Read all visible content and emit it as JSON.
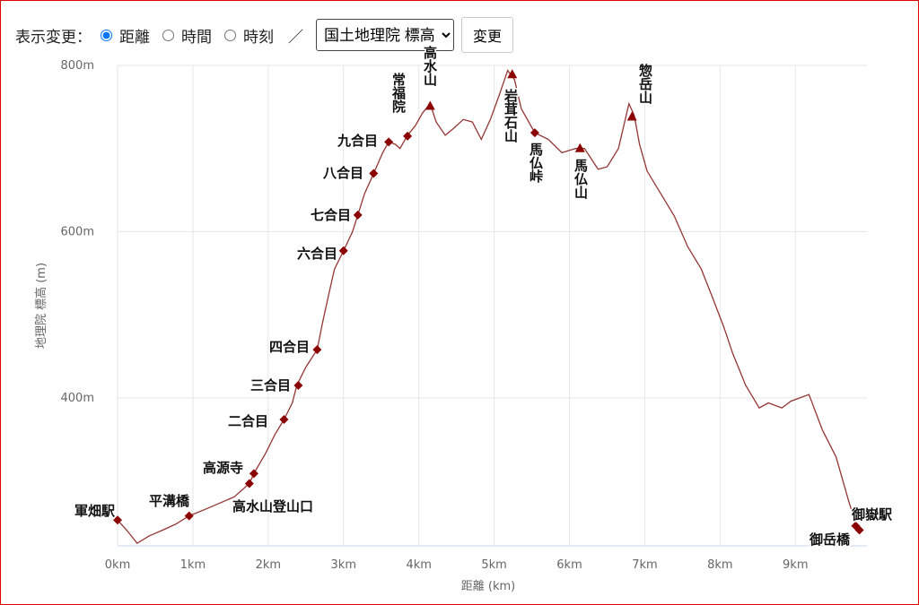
{
  "controls": {
    "label": "表示変更：",
    "options": [
      "距離",
      "時間",
      "時刻"
    ],
    "selected": 0,
    "separator": "／",
    "select": "国土地理院 標高",
    "button": "変更"
  },
  "chart_data": {
    "type": "line",
    "x_label": "距離 (km)",
    "y_label": "地理院 標高 (m)",
    "xlim": [
      0,
      9.95
    ],
    "ylim": [
      222,
      800
    ],
    "xticks": [
      {
        "value": 0,
        "label": "0km"
      },
      {
        "value": 1,
        "label": "1km"
      },
      {
        "value": 2,
        "label": "2km"
      },
      {
        "value": 3,
        "label": "3km"
      },
      {
        "value": 4,
        "label": "4km"
      },
      {
        "value": 5,
        "label": "5km"
      },
      {
        "value": 6,
        "label": "6km"
      },
      {
        "value": 7,
        "label": "7km"
      },
      {
        "value": 8,
        "label": "8km"
      },
      {
        "value": 9,
        "label": "9km"
      }
    ],
    "yticks": [
      {
        "value": 400,
        "label": "400m"
      },
      {
        "value": 600,
        "label": "600m"
      },
      {
        "value": 800,
        "label": "800m"
      }
    ],
    "grid": true,
    "series": [
      {
        "color": "#943634",
        "x": [
          0,
          0.12,
          0.26,
          0.42,
          0.6,
          0.77,
          0.95,
          1.19,
          1.55,
          1.75,
          1.81,
          1.97,
          2.09,
          2.21,
          2.32,
          2.38,
          2.5,
          2.65,
          2.72,
          2.8,
          2.88,
          3.0,
          3.12,
          3.19,
          3.28,
          3.4,
          3.52,
          3.6,
          3.69,
          3.75,
          3.85,
          3.95,
          4.05,
          4.15,
          4.23,
          4.35,
          4.47,
          4.59,
          4.71,
          4.83,
          4.95,
          5.07,
          5.18,
          5.27,
          5.36,
          5.54,
          5.72,
          5.9,
          6.08,
          6.2,
          6.38,
          6.5,
          6.65,
          6.79,
          6.86,
          6.93,
          7.03,
          7.21,
          7.39,
          7.57,
          7.75,
          7.89,
          8.05,
          8.17,
          8.34,
          8.52,
          8.64,
          8.82,
          8.94,
          9.18,
          9.36,
          9.54,
          9.71,
          9.83
        ],
        "values": [
          253,
          241,
          225,
          234,
          241,
          248,
          258,
          267,
          281,
          297,
          309,
          334,
          356,
          374,
          394,
          415,
          437,
          458,
          490,
          523,
          555,
          577,
          600,
          620,
          646,
          670,
          695,
          708,
          705,
          700,
          716,
          727,
          743,
          754,
          732,
          716,
          725,
          735,
          732,
          711,
          735,
          765,
          794,
          783,
          748,
          719,
          711,
          695,
          700,
          700,
          675,
          678,
          700,
          754,
          740,
          705,
          673,
          646,
          619,
          582,
          555,
          523,
          485,
          453,
          415,
          388,
          394,
          388,
          396,
          404,
          361,
          329,
          275,
          241
        ]
      }
    ],
    "marker_color": "#8b0000",
    "markers": [
      {
        "name": "軍畑駅",
        "shape": "diamond",
        "x": 0,
        "y": 253
      },
      {
        "name": "平溝橋",
        "shape": "diamond",
        "x": 0.95,
        "y": 258
      },
      {
        "name": "高水山登山口",
        "shape": "diamond",
        "x": 1.75,
        "y": 297
      },
      {
        "name": "高源寺",
        "shape": "diamond",
        "x": 1.81,
        "y": 309
      },
      {
        "name": "二合目",
        "shape": "diamond",
        "x": 2.21,
        "y": 374
      },
      {
        "name": "三合目",
        "shape": "diamond",
        "x": 2.4,
        "y": 415
      },
      {
        "name": "四合目",
        "shape": "diamond",
        "x": 2.65,
        "y": 458
      },
      {
        "name": "六合目",
        "shape": "diamond",
        "x": 3.0,
        "y": 577
      },
      {
        "name": "七合目",
        "shape": "diamond",
        "x": 3.19,
        "y": 620
      },
      {
        "name": "八合目",
        "shape": "diamond",
        "x": 3.4,
        "y": 670
      },
      {
        "name": "九合目",
        "shape": "diamond",
        "x": 3.6,
        "y": 708
      },
      {
        "name": "常福院",
        "shape": "diamond",
        "x": 3.85,
        "y": 715
      },
      {
        "name": "高水山",
        "shape": "triangle",
        "x": 4.15,
        "y": 751
      },
      {
        "name": "岩茸石山",
        "shape": "triangle",
        "x": 5.24,
        "y": 789
      },
      {
        "name": "馬仏峠",
        "shape": "diamond",
        "x": 5.54,
        "y": 719
      },
      {
        "name": "馬仏山",
        "shape": "triangle",
        "x": 6.14,
        "y": 700
      },
      {
        "name": "惣岳山",
        "shape": "triangle",
        "x": 6.83,
        "y": 738
      },
      {
        "name": "御嶽駅",
        "shape": "diamond",
        "x": 9.8,
        "y": 246
      },
      {
        "name": "御岳橋",
        "shape": "diamond",
        "x": 9.85,
        "y": 241
      }
    ]
  }
}
